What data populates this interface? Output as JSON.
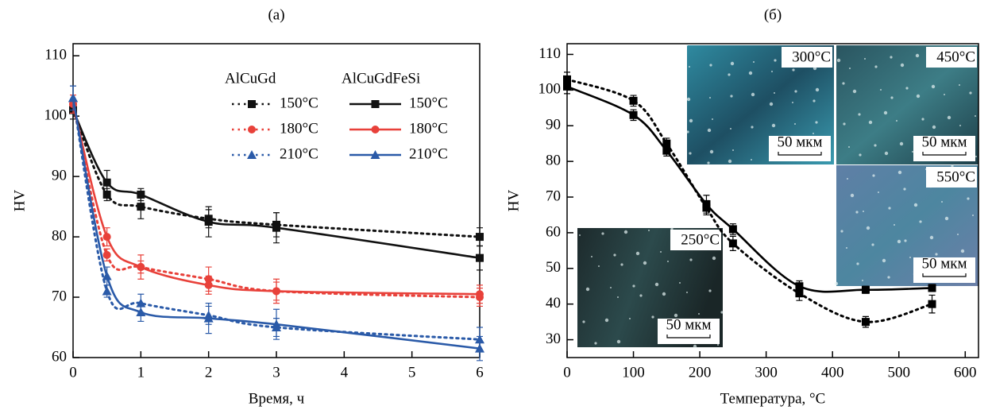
{
  "chart_data": [
    {
      "type": "line",
      "title": "(a)",
      "x_label": "Время, ч",
      "y_label": "HV",
      "x": [
        0,
        0.5,
        1,
        2,
        3,
        6
      ],
      "xlim": [
        0,
        6
      ],
      "xticks": [
        0,
        1,
        2,
        3,
        4,
        5,
        6
      ],
      "ylim": [
        60,
        112
      ],
      "yticks": [
        60,
        70,
        80,
        90,
        100,
        110
      ],
      "series_groups": [
        {
          "name": "AlCuGd",
          "dash": "dotted",
          "series": [
            {
              "name": "150°C",
              "color": "#111111",
              "marker": "square",
              "values": [
                101,
                87,
                85,
                83,
                82,
                80
              ],
              "errors": [
                1.5,
                1,
                2,
                1.5,
                2,
                1.5
              ]
            },
            {
              "name": "180°C",
              "color": "#e8413a",
              "marker": "circle",
              "values": [
                102,
                77,
                75,
                73,
                71,
                70
              ],
              "errors": [
                1.5,
                1,
                2,
                2,
                2,
                1.5
              ]
            },
            {
              "name": "210°C",
              "color": "#2a5aa8",
              "marker": "triangle",
              "values": [
                103,
                71,
                69,
                67,
                65,
                63
              ],
              "errors": [
                2,
                1,
                1.5,
                1.5,
                1.5,
                2
              ]
            }
          ]
        },
        {
          "name": "AlCuGdFeSi",
          "dash": "solid",
          "series": [
            {
              "name": "150°C",
              "color": "#111111",
              "marker": "square",
              "values": [
                101,
                89,
                87,
                82.5,
                81.5,
                76.5
              ],
              "errors": [
                1.5,
                2,
                1,
                2.5,
                2.5,
                2
              ]
            },
            {
              "name": "180°C",
              "color": "#e8413a",
              "marker": "circle",
              "values": [
                102,
                80,
                75,
                72,
                71,
                70.5
              ],
              "errors": [
                1.5,
                1.5,
                1,
                1.5,
                1.5,
                1.5
              ]
            },
            {
              "name": "210°C",
              "color": "#2a5aa8",
              "marker": "triangle",
              "values": [
                103,
                73.5,
                67.5,
                66.5,
                65.5,
                61.5
              ],
              "errors": [
                2,
                1.5,
                1.5,
                2.5,
                2.5,
                2
              ]
            }
          ]
        }
      ]
    },
    {
      "type": "line",
      "title": "(б)",
      "x_label": "Температура, °C",
      "y_label": "HV",
      "x": [
        0,
        100,
        150,
        210,
        250,
        350,
        450,
        550
      ],
      "xlim": [
        0,
        620
      ],
      "xticks": [
        0,
        100,
        200,
        300,
        400,
        500,
        600
      ],
      "ylim": [
        25,
        113
      ],
      "yticks": [
        30,
        40,
        50,
        60,
        70,
        80,
        90,
        100,
        110
      ],
      "series": [
        {
          "color": "#000000",
          "dash": "dotted",
          "marker": "square",
          "values": [
            103,
            97,
            85,
            67,
            57,
            43,
            35,
            40
          ],
          "errors": [
            2,
            1.5,
            1.5,
            2,
            2,
            2,
            1.5,
            2.5
          ]
        },
        {
          "color": "#000000",
          "dash": "solid",
          "marker": "square",
          "values": [
            101,
            93,
            83,
            68,
            61,
            45,
            44,
            44.5
          ],
          "errors": [
            2,
            1.5,
            1.5,
            2.5,
            1.5,
            1.5,
            1,
            1
          ]
        }
      ],
      "insets": [
        {
          "label": "300°C",
          "scale": "50 мкм"
        },
        {
          "label": "450°C",
          "scale": "50 мкм"
        },
        {
          "label": "550°C",
          "scale": "50 мкм"
        },
        {
          "label": "250°C",
          "scale": "50 мкм"
        }
      ]
    }
  ]
}
